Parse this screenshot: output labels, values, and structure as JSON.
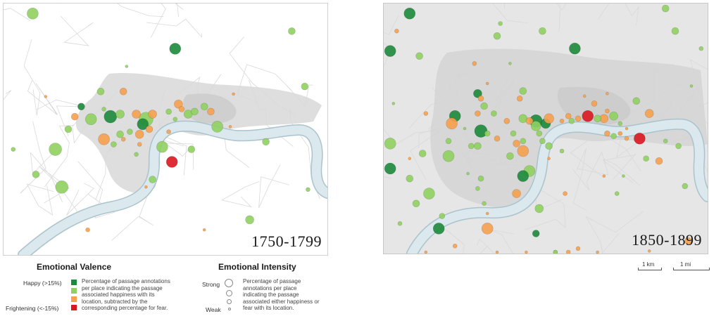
{
  "maps": [
    {
      "id": "left",
      "title": "1750-1799",
      "background": "#ffffff",
      "districts_color": "#eeeeee",
      "core_color": "#d8d8d8",
      "markers": [
        {
          "x": 0.09,
          "y": 0.04,
          "r": 8,
          "c": "lightgreen"
        },
        {
          "x": 0.89,
          "y": 0.11,
          "r": 5,
          "c": "lightgreen"
        },
        {
          "x": 0.53,
          "y": 0.18,
          "r": 8,
          "c": "darkgreen"
        },
        {
          "x": 0.38,
          "y": 0.25,
          "r": 2,
          "c": "lightgreen"
        },
        {
          "x": 0.93,
          "y": 0.33,
          "r": 5,
          "c": "lightgreen"
        },
        {
          "x": 0.3,
          "y": 0.35,
          "r": 5,
          "c": "lightgreen"
        },
        {
          "x": 0.37,
          "y": 0.35,
          "r": 5,
          "c": "orange"
        },
        {
          "x": 0.71,
          "y": 0.36,
          "r": 2,
          "c": "orange"
        },
        {
          "x": 0.13,
          "y": 0.37,
          "r": 2,
          "c": "orange"
        },
        {
          "x": 0.24,
          "y": 0.41,
          "r": 5,
          "c": "darkgreen"
        },
        {
          "x": 0.22,
          "y": 0.45,
          "r": 5,
          "c": "orange"
        },
        {
          "x": 0.27,
          "y": 0.46,
          "r": 8,
          "c": "lightgreen"
        },
        {
          "x": 0.33,
          "y": 0.45,
          "r": 9,
          "c": "darkgreen"
        },
        {
          "x": 0.31,
          "y": 0.42,
          "r": 3,
          "c": "lightgreen"
        },
        {
          "x": 0.36,
          "y": 0.44,
          "r": 6,
          "c": "lightgreen"
        },
        {
          "x": 0.41,
          "y": 0.44,
          "r": 6,
          "c": "orange"
        },
        {
          "x": 0.44,
          "y": 0.46,
          "r": 10,
          "c": "lightgreen"
        },
        {
          "x": 0.46,
          "y": 0.44,
          "r": 6,
          "c": "orange"
        },
        {
          "x": 0.43,
          "y": 0.48,
          "r": 8,
          "c": "darkgreen"
        },
        {
          "x": 0.45,
          "y": 0.5,
          "r": 5,
          "c": "orange"
        },
        {
          "x": 0.42,
          "y": 0.52,
          "r": 6,
          "c": "orange"
        },
        {
          "x": 0.39,
          "y": 0.51,
          "r": 4,
          "c": "lightgreen"
        },
        {
          "x": 0.36,
          "y": 0.52,
          "r": 5,
          "c": "lightgreen"
        },
        {
          "x": 0.37,
          "y": 0.54,
          "r": 3,
          "c": "orange"
        },
        {
          "x": 0.31,
          "y": 0.54,
          "r": 8,
          "c": "orange"
        },
        {
          "x": 0.34,
          "y": 0.56,
          "r": 4,
          "c": "lightgreen"
        },
        {
          "x": 0.2,
          "y": 0.5,
          "r": 5,
          "c": "lightgreen"
        },
        {
          "x": 0.54,
          "y": 0.4,
          "r": 6,
          "c": "orange"
        },
        {
          "x": 0.55,
          "y": 0.42,
          "r": 4,
          "c": "orange"
        },
        {
          "x": 0.51,
          "y": 0.43,
          "r": 4,
          "c": "lightgreen"
        },
        {
          "x": 0.57,
          "y": 0.44,
          "r": 6,
          "c": "lightgreen"
        },
        {
          "x": 0.59,
          "y": 0.43,
          "r": 5,
          "c": "lightgreen"
        },
        {
          "x": 0.62,
          "y": 0.41,
          "r": 5,
          "c": "lightgreen"
        },
        {
          "x": 0.64,
          "y": 0.43,
          "r": 5,
          "c": "orange"
        },
        {
          "x": 0.53,
          "y": 0.46,
          "r": 3,
          "c": "lightgreen"
        },
        {
          "x": 0.66,
          "y": 0.49,
          "r": 8,
          "c": "lightgreen"
        },
        {
          "x": 0.7,
          "y": 0.49,
          "r": 2,
          "c": "orange"
        },
        {
          "x": 0.51,
          "y": 0.51,
          "r": 3,
          "c": "orange"
        },
        {
          "x": 0.42,
          "y": 0.56,
          "r": 3,
          "c": "orange"
        },
        {
          "x": 0.03,
          "y": 0.58,
          "r": 3,
          "c": "lightgreen"
        },
        {
          "x": 0.16,
          "y": 0.58,
          "r": 9,
          "c": "lightgreen"
        },
        {
          "x": 0.49,
          "y": 0.57,
          "r": 8,
          "c": "lightgreen"
        },
        {
          "x": 0.58,
          "y": 0.58,
          "r": 5,
          "c": "lightgreen"
        },
        {
          "x": 0.41,
          "y": 0.6,
          "r": 3,
          "c": "lightgreen"
        },
        {
          "x": 0.81,
          "y": 0.55,
          "r": 5,
          "c": "lightgreen"
        },
        {
          "x": 0.52,
          "y": 0.63,
          "r": 8,
          "c": "red"
        },
        {
          "x": 0.1,
          "y": 0.68,
          "r": 5,
          "c": "lightgreen"
        },
        {
          "x": 0.18,
          "y": 0.73,
          "r": 9,
          "c": "lightgreen"
        },
        {
          "x": 0.46,
          "y": 0.7,
          "r": 5,
          "c": "lightgreen"
        },
        {
          "x": 0.44,
          "y": 0.73,
          "r": 2,
          "c": "orange"
        },
        {
          "x": 0.94,
          "y": 0.74,
          "r": 3,
          "c": "lightgreen"
        },
        {
          "x": 0.76,
          "y": 0.86,
          "r": 6,
          "c": "lightgreen"
        },
        {
          "x": 0.26,
          "y": 0.9,
          "r": 3,
          "c": "orange"
        },
        {
          "x": 0.62,
          "y": 0.9,
          "r": 2,
          "c": "orange"
        }
      ]
    },
    {
      "id": "right",
      "title": "1850-1899",
      "background": "#e6e6e6",
      "districts_color": "#eeeeee",
      "core_color": "#d4d4d4",
      "markers": [
        {
          "x": 0.08,
          "y": 0.04,
          "r": 8,
          "c": "darkgreen"
        },
        {
          "x": 0.87,
          "y": 0.02,
          "r": 5,
          "c": "lightgreen"
        },
        {
          "x": 0.36,
          "y": 0.08,
          "r": 3,
          "c": "lightgreen"
        },
        {
          "x": 0.49,
          "y": 0.11,
          "r": 5,
          "c": "lightgreen"
        },
        {
          "x": 0.04,
          "y": 0.11,
          "r": 3,
          "c": "orange"
        },
        {
          "x": 0.9,
          "y": 0.11,
          "r": 5,
          "c": "lightgreen"
        },
        {
          "x": 0.35,
          "y": 0.13,
          "r": 5,
          "c": "lightgreen"
        },
        {
          "x": 0.02,
          "y": 0.19,
          "r": 8,
          "c": "darkgreen"
        },
        {
          "x": 0.59,
          "y": 0.18,
          "r": 8,
          "c": "darkgreen"
        },
        {
          "x": 0.11,
          "y": 0.21,
          "r": 5,
          "c": "lightgreen"
        },
        {
          "x": 0.98,
          "y": 0.18,
          "r": 3,
          "c": "lightgreen"
        },
        {
          "x": 0.28,
          "y": 0.24,
          "r": 3,
          "c": "orange"
        },
        {
          "x": 0.39,
          "y": 0.24,
          "r": 2,
          "c": "lightgreen"
        },
        {
          "x": 0.32,
          "y": 0.32,
          "r": 2,
          "c": "orange"
        },
        {
          "x": 0.95,
          "y": 0.33,
          "r": 2,
          "c": "lightgreen"
        },
        {
          "x": 0.43,
          "y": 0.35,
          "r": 5,
          "c": "lightgreen"
        },
        {
          "x": 0.42,
          "y": 0.38,
          "r": 4,
          "c": "orange"
        },
        {
          "x": 0.29,
          "y": 0.36,
          "r": 6,
          "c": "darkgreen"
        },
        {
          "x": 0.3,
          "y": 0.38,
          "r": 4,
          "c": "orange"
        },
        {
          "x": 0.31,
          "y": 0.41,
          "r": 5,
          "c": "lightgreen"
        },
        {
          "x": 0.62,
          "y": 0.37,
          "r": 2,
          "c": "orange"
        },
        {
          "x": 0.69,
          "y": 0.36,
          "r": 2,
          "c": "orange"
        },
        {
          "x": 0.78,
          "y": 0.39,
          "r": 5,
          "c": "lightgreen"
        },
        {
          "x": 0.65,
          "y": 0.4,
          "r": 4,
          "c": "orange"
        },
        {
          "x": 0.03,
          "y": 0.4,
          "r": 2,
          "c": "lightgreen"
        },
        {
          "x": 0.69,
          "y": 0.43,
          "r": 3,
          "c": "orange"
        },
        {
          "x": 0.13,
          "y": 0.44,
          "r": 3,
          "c": "orange"
        },
        {
          "x": 0.22,
          "y": 0.45,
          "r": 8,
          "c": "darkgreen"
        },
        {
          "x": 0.29,
          "y": 0.44,
          "r": 4,
          "c": "orange"
        },
        {
          "x": 0.34,
          "y": 0.44,
          "r": 4,
          "c": "lightgreen"
        },
        {
          "x": 0.38,
          "y": 0.47,
          "r": 4,
          "c": "orange"
        },
        {
          "x": 0.43,
          "y": 0.46,
          "r": 6,
          "c": "lightgreen"
        },
        {
          "x": 0.45,
          "y": 0.47,
          "r": 5,
          "c": "orange"
        },
        {
          "x": 0.47,
          "y": 0.47,
          "r": 9,
          "c": "darkgreen"
        },
        {
          "x": 0.5,
          "y": 0.48,
          "r": 7,
          "c": "darkgreen"
        },
        {
          "x": 0.51,
          "y": 0.46,
          "r": 7,
          "c": "orange"
        },
        {
          "x": 0.55,
          "y": 0.47,
          "r": 3,
          "c": "orange"
        },
        {
          "x": 0.47,
          "y": 0.49,
          "r": 7,
          "c": "lightgreen"
        },
        {
          "x": 0.48,
          "y": 0.52,
          "r": 4,
          "c": "lightgreen"
        },
        {
          "x": 0.57,
          "y": 0.45,
          "r": 4,
          "c": "orange"
        },
        {
          "x": 0.58,
          "y": 0.47,
          "r": 4,
          "c": "lightgreen"
        },
        {
          "x": 0.6,
          "y": 0.46,
          "r": 4,
          "c": "orange"
        },
        {
          "x": 0.63,
          "y": 0.45,
          "r": 8,
          "c": "red"
        },
        {
          "x": 0.66,
          "y": 0.46,
          "r": 5,
          "c": "lightgreen"
        },
        {
          "x": 0.68,
          "y": 0.46,
          "r": 6,
          "c": "orange"
        },
        {
          "x": 0.71,
          "y": 0.45,
          "r": 6,
          "c": "lightgreen"
        },
        {
          "x": 0.73,
          "y": 0.48,
          "r": 3,
          "c": "lightgreen"
        },
        {
          "x": 0.75,
          "y": 0.5,
          "r": 2,
          "c": "orange"
        },
        {
          "x": 0.21,
          "y": 0.48,
          "r": 8,
          "c": "orange"
        },
        {
          "x": 0.25,
          "y": 0.5,
          "r": 2,
          "c": "lightgreen"
        },
        {
          "x": 0.3,
          "y": 0.51,
          "r": 9,
          "c": "darkgreen"
        },
        {
          "x": 0.32,
          "y": 0.52,
          "r": 4,
          "c": "lightgreen"
        },
        {
          "x": 0.35,
          "y": 0.54,
          "r": 4,
          "c": "orange"
        },
        {
          "x": 0.4,
          "y": 0.52,
          "r": 4,
          "c": "lightgreen"
        },
        {
          "x": 0.41,
          "y": 0.56,
          "r": 5,
          "c": "orange"
        },
        {
          "x": 0.43,
          "y": 0.55,
          "r": 4,
          "c": "lightgreen"
        },
        {
          "x": 0.49,
          "y": 0.55,
          "r": 4,
          "c": "lightgreen"
        },
        {
          "x": 0.51,
          "y": 0.57,
          "r": 5,
          "c": "lightgreen"
        },
        {
          "x": 0.55,
          "y": 0.59,
          "r": 3,
          "c": "lightgreen"
        },
        {
          "x": 0.69,
          "y": 0.52,
          "r": 4,
          "c": "orange"
        },
        {
          "x": 0.71,
          "y": 0.53,
          "r": 4,
          "c": "lightgreen"
        },
        {
          "x": 0.73,
          "y": 0.52,
          "r": 3,
          "c": "orange"
        },
        {
          "x": 0.75,
          "y": 0.54,
          "r": 3,
          "c": "orange"
        },
        {
          "x": 0.79,
          "y": 0.54,
          "r": 8,
          "c": "red"
        },
        {
          "x": 0.82,
          "y": 0.44,
          "r": 6,
          "c": "orange"
        },
        {
          "x": 0.87,
          "y": 0.55,
          "r": 3,
          "c": "lightgreen"
        },
        {
          "x": 0.2,
          "y": 0.55,
          "r": 4,
          "c": "lightgreen"
        },
        {
          "x": 0.29,
          "y": 0.57,
          "r": 5,
          "c": "lightgreen"
        },
        {
          "x": 0.27,
          "y": 0.57,
          "r": 4,
          "c": "lightgreen"
        },
        {
          "x": 0.02,
          "y": 0.56,
          "r": 8,
          "c": "lightgreen"
        },
        {
          "x": 0.08,
          "y": 0.62,
          "r": 2,
          "c": "orange"
        },
        {
          "x": 0.12,
          "y": 0.6,
          "r": 5,
          "c": "lightgreen"
        },
        {
          "x": 0.2,
          "y": 0.61,
          "r": 8,
          "c": "lightgreen"
        },
        {
          "x": 0.39,
          "y": 0.61,
          "r": 5,
          "c": "lightgreen"
        },
        {
          "x": 0.43,
          "y": 0.59,
          "r": 8,
          "c": "orange"
        },
        {
          "x": 0.51,
          "y": 0.62,
          "r": 2,
          "c": "orange"
        },
        {
          "x": 0.81,
          "y": 0.62,
          "r": 4,
          "c": "lightgreen"
        },
        {
          "x": 0.91,
          "y": 0.57,
          "r": 4,
          "c": "lightgreen"
        },
        {
          "x": 0.85,
          "y": 0.63,
          "r": 5,
          "c": "orange"
        },
        {
          "x": 0.02,
          "y": 0.66,
          "r": 8,
          "c": "darkgreen"
        },
        {
          "x": 0.08,
          "y": 0.7,
          "r": 5,
          "c": "lightgreen"
        },
        {
          "x": 0.45,
          "y": 0.67,
          "r": 8,
          "c": "lightgreen"
        },
        {
          "x": 0.26,
          "y": 0.68,
          "r": 2,
          "c": "lightgreen"
        },
        {
          "x": 0.3,
          "y": 0.7,
          "r": 4,
          "c": "lightgreen"
        },
        {
          "x": 0.43,
          "y": 0.69,
          "r": 8,
          "c": "darkgreen"
        },
        {
          "x": 0.68,
          "y": 0.69,
          "r": 2,
          "c": "orange"
        },
        {
          "x": 0.74,
          "y": 0.69,
          "r": 2,
          "c": "lightgreen"
        },
        {
          "x": 0.14,
          "y": 0.76,
          "r": 8,
          "c": "lightgreen"
        },
        {
          "x": 0.29,
          "y": 0.74,
          "r": 3,
          "c": "lightgreen"
        },
        {
          "x": 0.41,
          "y": 0.76,
          "r": 6,
          "c": "orange"
        },
        {
          "x": 0.56,
          "y": 0.76,
          "r": 3,
          "c": "orange"
        },
        {
          "x": 0.72,
          "y": 0.76,
          "r": 3,
          "c": "lightgreen"
        },
        {
          "x": 0.93,
          "y": 0.73,
          "r": 4,
          "c": "lightgreen"
        },
        {
          "x": 0.1,
          "y": 0.8,
          "r": 5,
          "c": "lightgreen"
        },
        {
          "x": 0.31,
          "y": 0.8,
          "r": 3,
          "c": "lightgreen"
        },
        {
          "x": 0.48,
          "y": 0.82,
          "r": 6,
          "c": "lightgreen"
        },
        {
          "x": 0.18,
          "y": 0.85,
          "r": 4,
          "c": "lightgreen"
        },
        {
          "x": 0.32,
          "y": 0.84,
          "r": 2,
          "c": "orange"
        },
        {
          "x": 0.05,
          "y": 0.88,
          "r": 3,
          "c": "lightgreen"
        },
        {
          "x": 0.17,
          "y": 0.9,
          "r": 8,
          "c": "darkgreen"
        },
        {
          "x": 0.32,
          "y": 0.9,
          "r": 8,
          "c": "orange"
        },
        {
          "x": 0.47,
          "y": 0.92,
          "r": 5,
          "c": "darkgreen"
        },
        {
          "x": 0.22,
          "y": 0.97,
          "r": 3,
          "c": "orange"
        },
        {
          "x": 0.94,
          "y": 0.95,
          "r": 5,
          "c": "orange"
        },
        {
          "x": 0.6,
          "y": 0.98,
          "r": 3,
          "c": "orange"
        },
        {
          "x": 0.82,
          "y": 0.99,
          "r": 2,
          "c": "orange"
        },
        {
          "x": 0.53,
          "y": 1.0,
          "r": 3,
          "c": "lightgreen"
        },
        {
          "x": 0.35,
          "y": 1.06,
          "r": 2,
          "c": "orange"
        },
        {
          "x": 0.57,
          "y": 1.08,
          "r": 3,
          "c": "orange"
        },
        {
          "x": 0.13,
          "y": 1.13,
          "r": 2,
          "c": "orange"
        },
        {
          "x": 0.53,
          "y": 1.16,
          "r": 3,
          "c": "lightgreen"
        },
        {
          "x": 0.44,
          "y": 1.2,
          "r": 2,
          "c": "orange"
        },
        {
          "x": 0.66,
          "y": 1.15,
          "r": 2,
          "c": "orange"
        }
      ]
    }
  ],
  "colors": {
    "darkgreen": "#1c8a3a",
    "lightgreen": "#8fd061",
    "orange": "#f5a04e",
    "red": "#d9171f",
    "river": "#dbe8ed",
    "river_edge": "#aac3cc"
  },
  "legend": {
    "valence_heading": "Emotional Valence",
    "happy_label": "Happy (>15%)",
    "frightening_label": "Frightening (<-15%)",
    "valence_desc_lines": [
      "Percentage of passage annotations",
      "per place indicating the passage",
      "associated happiness with its",
      "location, subtracted by the",
      "corresponding percentage for fear."
    ],
    "intensity_heading": "Emotional Intensity",
    "strong_label": "Strong",
    "weak_label": "Weak",
    "intensity_desc_lines": [
      "Percentage of passage",
      "annotations per place",
      "indicating the passage",
      "associated either happiness or",
      "fear with its location."
    ]
  },
  "scale": {
    "km_label": "1 km",
    "mi_label": "1 mi"
  }
}
